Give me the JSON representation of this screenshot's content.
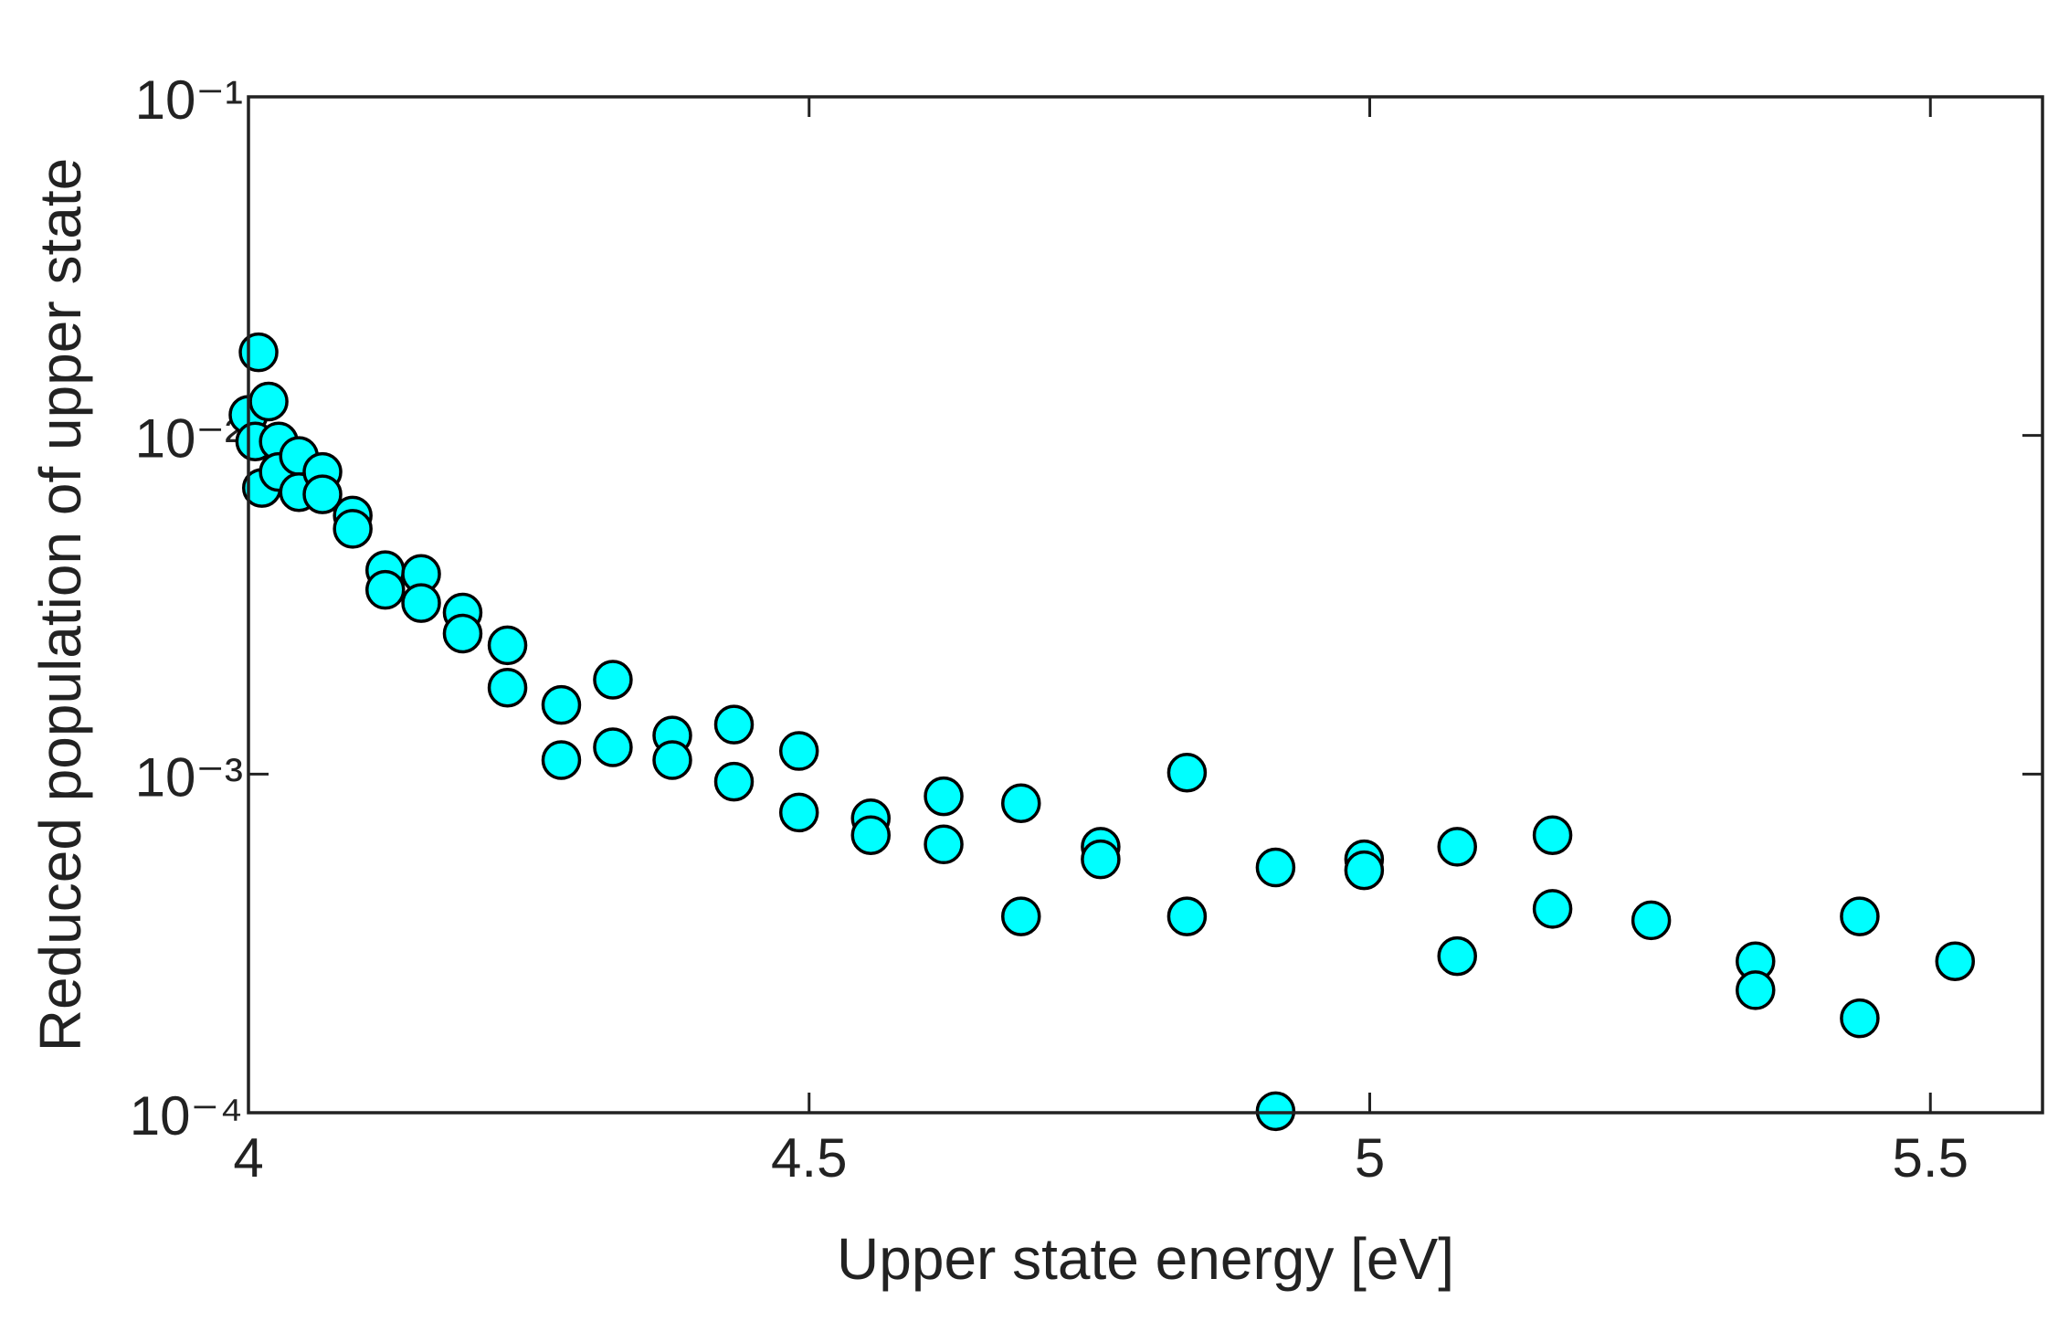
{
  "chart_data": {
    "type": "scatter",
    "xlabel": "Upper state energy [eV]",
    "ylabel": "Reduced population of upper state",
    "x": [
      4.0,
      4.009,
      4.006,
      4.018,
      4.012,
      4.027,
      4.027,
      4.045,
      4.045,
      4.066,
      4.066,
      4.093,
      4.093,
      4.122,
      4.122,
      4.154,
      4.154,
      4.191,
      4.191,
      4.231,
      4.231,
      4.279,
      4.279,
      4.325,
      4.325,
      4.378,
      4.378,
      4.433,
      4.433,
      4.491,
      4.491,
      4.555,
      4.555,
      4.62,
      4.62,
      4.689,
      4.689,
      4.76,
      4.76,
      4.837,
      4.837,
      4.916,
      4.916,
      4.995,
      4.995,
      5.078,
      5.078,
      5.163,
      5.163,
      5.251,
      5.344,
      5.344,
      5.437,
      5.437,
      5.522
    ],
    "values": [
      0.0115,
      0.0176,
      0.0096,
      0.0126,
      0.007,
      0.0096,
      0.0078,
      0.0087,
      0.0068,
      0.0078,
      0.0067,
      0.0058,
      0.0053,
      0.004,
      0.0035,
      0.0039,
      0.0032,
      0.003,
      0.0026,
      0.0024,
      0.0018,
      0.0016,
      0.0011,
      0.0019,
      0.0012,
      0.0013,
      0.0011,
      0.0014,
      0.00095,
      0.00117,
      0.00077,
      0.00074,
      0.00066,
      0.00086,
      0.00062,
      0.00082,
      0.00038,
      0.00061,
      0.00056,
      0.00101,
      0.00038,
      0.00053,
      0.000101,
      0.00056,
      0.00052,
      0.00061,
      0.00029,
      0.00066,
      0.0004,
      0.00037,
      0.00028,
      0.00023,
      0.00038,
      0.00019,
      0.00028
    ],
    "color": "#00ffff",
    "edgecolor": "#000000",
    "xlim": [
      4,
      5.6
    ],
    "xticks": [
      4,
      4.5,
      5,
      5.5
    ],
    "ylim": [
      0.0001,
      0.1
    ],
    "yscale": "log",
    "yticks": [
      {
        "value": 0.1,
        "label": "10⁻¹"
      },
      {
        "value": 0.01,
        "label": "10⁻²"
      },
      {
        "value": 0.001,
        "label": "10⁻³"
      },
      {
        "value": 0.0001,
        "label": "10⁻⁴"
      }
    ]
  }
}
